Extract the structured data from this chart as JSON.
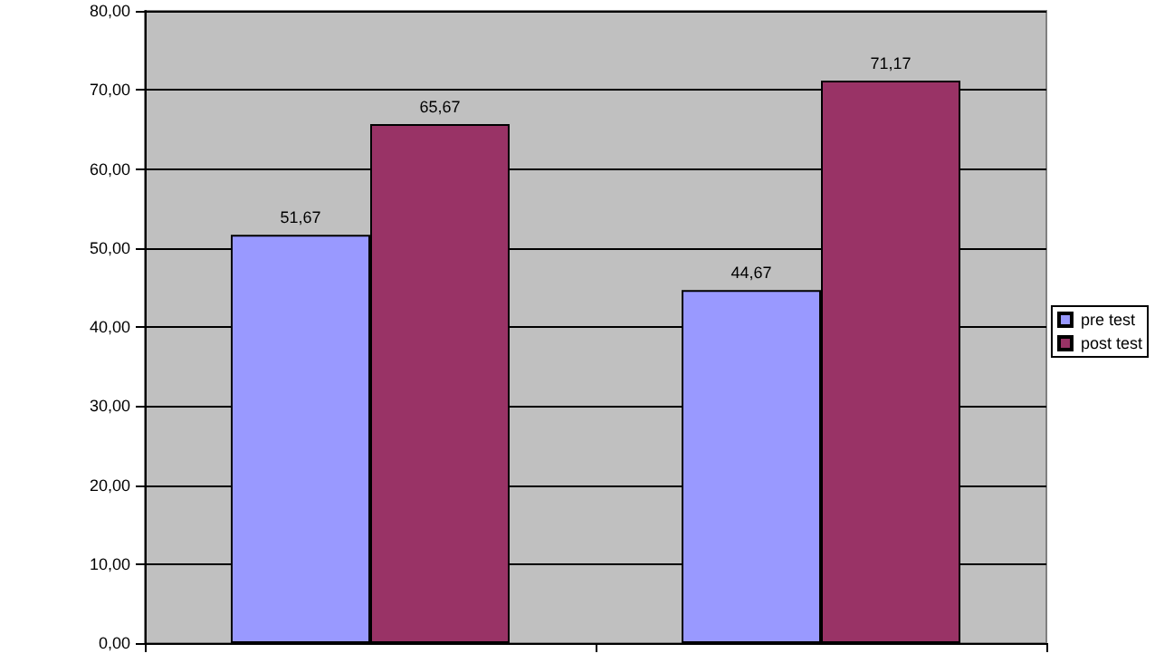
{
  "chart_data": {
    "type": "bar",
    "categories": [
      null,
      null
    ],
    "series": [
      {
        "name": "pre test",
        "color": "#9999ff",
        "values": [
          51.67,
          44.67
        ],
        "value_labels": [
          "51,67",
          "44,67"
        ]
      },
      {
        "name": "post test",
        "color": "#993366",
        "values": [
          65.67,
          71.17
        ],
        "value_labels": [
          "65,67",
          "71,17"
        ]
      }
    ],
    "ylim": [
      0,
      80
    ],
    "yticks": [
      {
        "value": 0,
        "label": "0,00"
      },
      {
        "value": 10,
        "label": "10,00"
      },
      {
        "value": 20,
        "label": "20,00"
      },
      {
        "value": 30,
        "label": "30,00"
      },
      {
        "value": 40,
        "label": "40,00"
      },
      {
        "value": 50,
        "label": "50,00"
      },
      {
        "value": 60,
        "label": "60,00"
      },
      {
        "value": 70,
        "label": "70,00"
      },
      {
        "value": 80,
        "label": "80,00"
      }
    ],
    "grid": "y",
    "legend": "right"
  }
}
